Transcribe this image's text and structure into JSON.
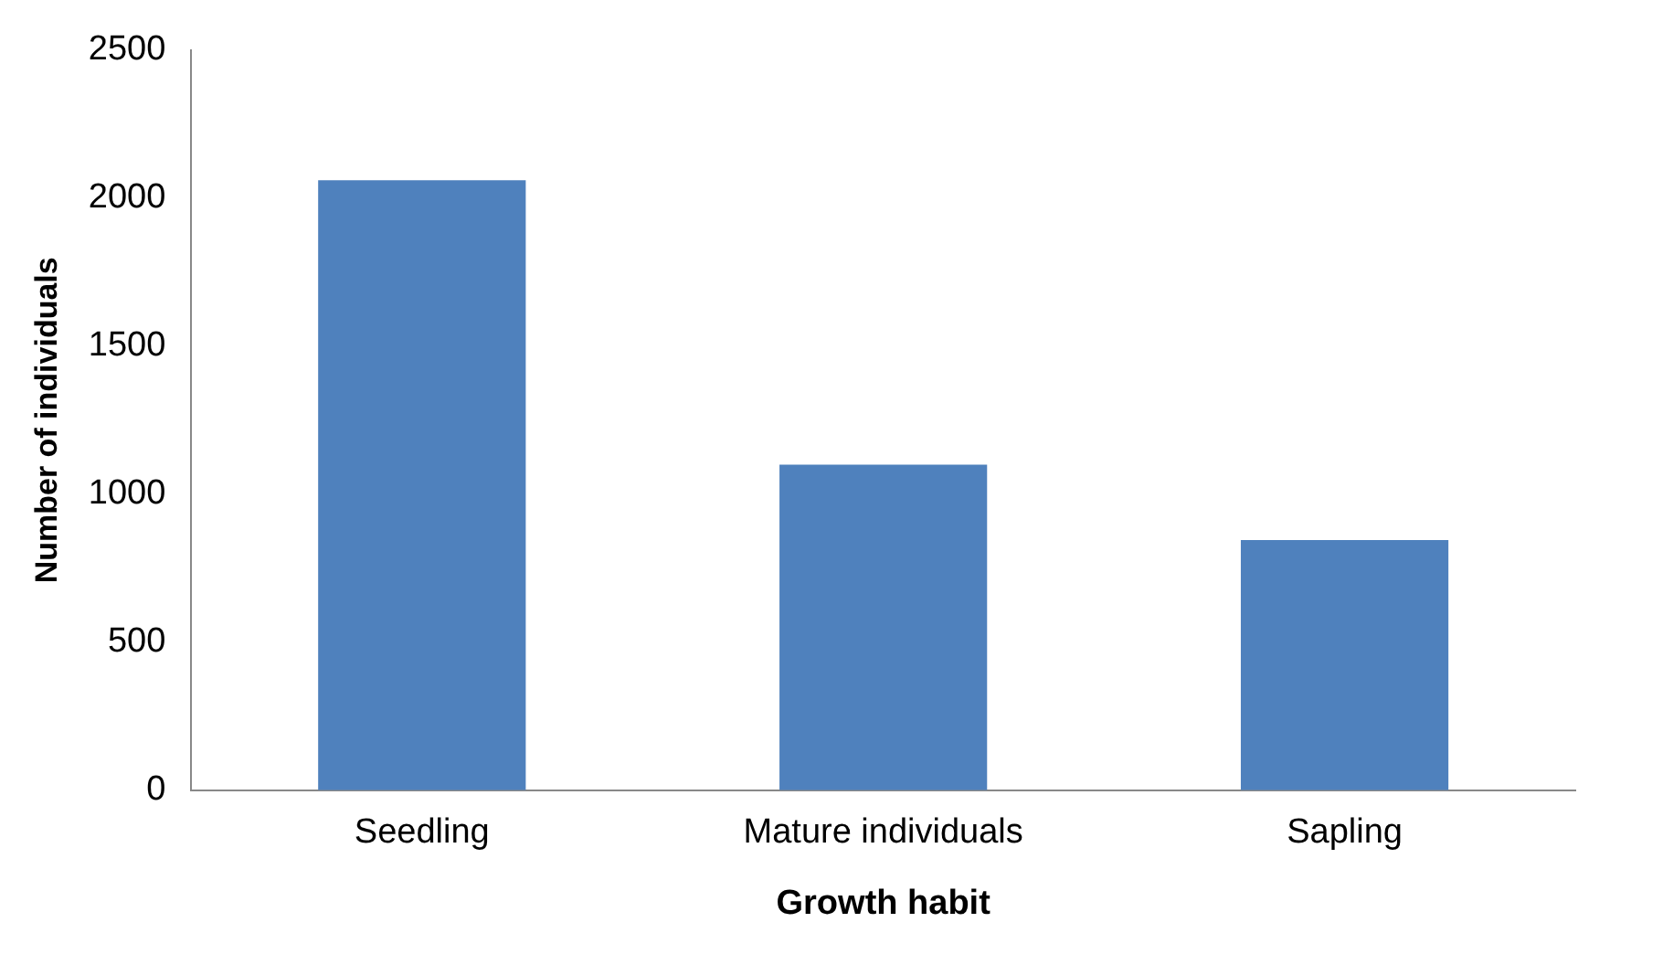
{
  "chart_data": {
    "type": "bar",
    "xlabel": "Growth habit",
    "ylabel": "Number of individuals",
    "categories": [
      "Seedling",
      "Mature individuals",
      "Sapling"
    ],
    "values": [
      2060,
      1100,
      845
    ],
    "color": "#4f81bd",
    "ylim": [
      0,
      2500
    ],
    "yticks": [
      0,
      500,
      1000,
      1500,
      2000,
      2500
    ],
    "grid": false,
    "legend": false
  }
}
